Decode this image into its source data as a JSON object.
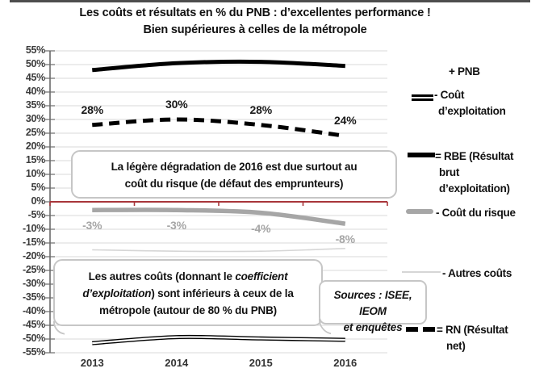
{
  "title": {
    "line1": "Les coûts et résultats en % du PNB : d’excellentes performance !",
    "line2": "Bien supérieures à celles de la métropole"
  },
  "chart_data": {
    "type": "line",
    "categories": [
      "2013",
      "2014",
      "2015",
      "2016"
    ],
    "ylim": [
      -55,
      55
    ],
    "ytick_step": 5,
    "yticks": [
      "55%",
      "50%",
      "45%",
      "40%",
      "35%",
      "30%",
      "25%",
      "20%",
      "15%",
      "10%",
      "5%",
      "0%",
      "-5%",
      "-10%",
      "-15%",
      "-20%",
      "-25%",
      "-30%",
      "-35%",
      "-40%",
      "-45%",
      "-50%",
      "-55%"
    ],
    "grid": true,
    "grid_color": "#d9d9d9",
    "axis_color": "#6b6b6b",
    "zero_line_color": "#a8353a",
    "legend_position": "right",
    "series": [
      {
        "name": "RBE (Résultat brut d’exploitation)",
        "values": [
          48,
          50.5,
          51,
          49.5
        ],
        "color": "#000000",
        "style": "solid",
        "width": 5
      },
      {
        "name": "RN (Résultat net)",
        "values": [
          28,
          30,
          28,
          24
        ],
        "color": "#000000",
        "style": "dashed",
        "width": 5,
        "point_labels": [
          "28%",
          "30%",
          "28%",
          "24%"
        ],
        "label_color": "#1a1a1a",
        "label_side": "above"
      },
      {
        "name": "Coût du risque",
        "values": [
          -3,
          -3,
          -4,
          -8
        ],
        "color": "#a6a6a6",
        "style": "solid",
        "width": 5.5,
        "point_labels": [
          "-3%",
          "-3%",
          "-4%",
          "-8%"
        ],
        "label_color": "#a6a6a6",
        "label_side": "below"
      },
      {
        "name": "Autres coûts",
        "values": [
          -17.5,
          -18,
          -18,
          -17
        ],
        "color": "#d6d6d6",
        "style": "solid",
        "width": 1.6
      },
      {
        "name": "Coût d’exploitation",
        "values": [
          -51.5,
          -49.3,
          -49.8,
          -50.3
        ],
        "color": "#000000",
        "style": "double",
        "width": 5
      }
    ]
  },
  "annotations": {
    "box1": {
      "line1": "La légère dégradation de 2016 est due surtout au",
      "line2": "coût du risque (de défaut des emprunteurs)"
    },
    "box2": {
      "l1a": "Les autres coûts (donnant le ",
      "l1b": "coefficient",
      "l2a": "d’exploitation",
      "l2b": ") sont inférieurs à ceux de la",
      "l3": "métropole (autour de 80 % du PNB)"
    },
    "sources": {
      "line1": "Sources : ISEE,  IEOM",
      "line2": "et enquêtes"
    }
  },
  "legend": {
    "items": [
      {
        "id": "pnb",
        "marker": "none",
        "lines": [
          "+ PNB"
        ]
      },
      {
        "id": "cout-exploitation",
        "marker": "double-line",
        "lines": [
          "- Coût",
          "d’exploitation"
        ]
      },
      {
        "id": "rbe",
        "marker": "thick-black-line",
        "lines": [
          "= RBE (Résultat",
          "brut",
          "d’exploitation)"
        ]
      },
      {
        "id": "cout-risque",
        "marker": "thick-gray-line",
        "lines": [
          "- Coût du risque"
        ]
      },
      {
        "id": "autres-couts",
        "marker": "thin-light-line",
        "lines": [
          "- Autres coûts"
        ]
      },
      {
        "id": "rn",
        "marker": "dashed-black-line",
        "lines": [
          "= RN (Résultat",
          "net)"
        ]
      }
    ]
  }
}
